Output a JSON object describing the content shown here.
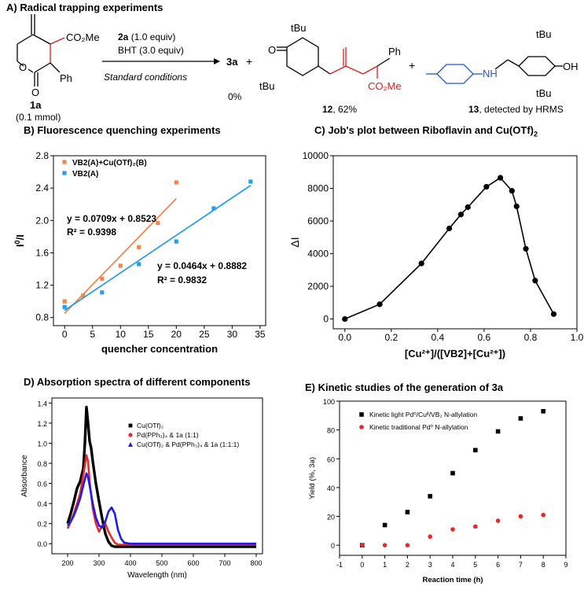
{
  "panel_titles": {
    "a": "A) Radical trapping experiments",
    "b": "B) Fluorescence quenching experiments",
    "c_main": "C) Job's plot between Riboflavin and Cu(OTf)",
    "c_sub": "2",
    "d": "D) Absorption spectra of different components",
    "e": "E) Kinetic studies of the generation of 3a"
  },
  "scheme": {
    "reactant_label": "1a",
    "reactant_amount": "(0.1 mmol)",
    "reagent1_bold": "2a",
    "reagent1_rest": " (1.0 equiv)",
    "reagent2": "BHT (3.0 equiv)",
    "conditions": "Standard conditions",
    "product_3a": "3a",
    "plus": "+",
    "yield_3a": "0%",
    "product12_label": "12",
    "product12_yield": ", 62%",
    "product13_label": "13",
    "product13_note": ", detected by HRMS",
    "atoms": {
      "co2me": "CO₂Me",
      "ph": "Ph",
      "tbu": "tBu",
      "oh": "OH",
      "nh": "NH",
      "o": "O"
    }
  },
  "colors": {
    "orange": "#f0874f",
    "blue": "#2a9fe6",
    "black": "#000000",
    "red": "#e8282b",
    "navy": "#1d1df0",
    "scheme_red": "#e21b1b",
    "scheme_blue": "#1f5bd1"
  },
  "chart_data": [
    {
      "id": "B",
      "type": "scatter",
      "xlabel": "quencher concentration",
      "ylabel_main": "I",
      "ylabel_sup": "0",
      "ylabel_tail": "/I",
      "xlim": [
        -2,
        36
      ],
      "ylim": [
        0.7,
        2.8
      ],
      "xticks": [
        0,
        5,
        10,
        15,
        20,
        25,
        30,
        35
      ],
      "yticks": [
        0.8,
        1.2,
        1.6,
        2.0,
        2.4,
        2.8
      ],
      "ytick_labels": [
        "0.8",
        "1.2",
        "1.6",
        "2.0",
        "2.4",
        "2.8"
      ],
      "legend_position": "top-left",
      "series": [
        {
          "name": "VB2(A)+Cu(OTf)₂(B)",
          "color": "#f0874f",
          "x": [
            0,
            3.3,
            6.7,
            10,
            13.3,
            16.7,
            20
          ],
          "y": [
            1.0,
            1.07,
            1.28,
            1.44,
            1.67,
            1.97,
            2.47
          ],
          "fit": {
            "slope": 0.0709,
            "intercept": 0.8523,
            "x_range": [
              0,
              20
            ]
          }
        },
        {
          "name": "VB2(A)",
          "color": "#2a9fe6",
          "x": [
            0,
            6.7,
            13.3,
            20,
            26.7,
            33.3
          ],
          "y": [
            0.93,
            1.11,
            1.46,
            1.74,
            2.15,
            2.48
          ],
          "fit": {
            "slope": 0.0464,
            "intercept": 0.8882,
            "x_range": [
              0,
              33.3
            ]
          }
        }
      ],
      "annotations": [
        "y = 0.0709x + 0.8523",
        "R² = 0.9398",
        "y = 0.0464x + 0.8882",
        "R² = 0.9832"
      ]
    },
    {
      "id": "C",
      "type": "line",
      "xlabel": "[Cu²⁺]/([VB2]+[Cu²⁺])",
      "ylabel": "ΔI",
      "xlim": [
        -0.05,
        1.0
      ],
      "ylim": [
        -600,
        10000
      ],
      "xticks": [
        0.0,
        0.2,
        0.4,
        0.6,
        0.8,
        1.0
      ],
      "xtick_labels": [
        "0.0",
        "0.2",
        "0.4",
        "0.6",
        "0.8",
        "1.0"
      ],
      "yticks": [
        0,
        2000,
        4000,
        6000,
        8000,
        10000
      ],
      "x": [
        0.0,
        0.15,
        0.33,
        0.45,
        0.5,
        0.53,
        0.61,
        0.67,
        0.72,
        0.74,
        0.78,
        0.82,
        0.9
      ],
      "y": [
        0,
        900,
        3400,
        5550,
        6400,
        6850,
        8100,
        8650,
        7850,
        6900,
        4300,
        2350,
        300
      ]
    },
    {
      "id": "D",
      "type": "line",
      "xlabel": "Wavelength (nm)",
      "ylabel": "Absorbance",
      "xlim": [
        150,
        820
      ],
      "ylim": [
        -0.1,
        1.45
      ],
      "xticks": [
        200,
        300,
        400,
        500,
        600,
        700,
        800
      ],
      "yticks": [
        0.0,
        0.2,
        0.4,
        0.6,
        0.8,
        1.0,
        1.2,
        1.4
      ],
      "ytick_labels": [
        "0.0",
        "0.2",
        "0.4",
        "0.6",
        "0.8",
        "1.0",
        "1.2",
        "1.4"
      ],
      "legend_position": "top-right",
      "series": [
        {
          "name": "Cu(OTf)₂",
          "color": "#000000",
          "x": [
            200,
            210,
            220,
            230,
            240,
            250,
            255,
            260,
            265,
            270,
            275,
            280,
            290,
            300,
            310,
            320,
            330,
            340,
            350,
            360,
            380,
            400,
            500,
            600,
            700,
            800
          ],
          "y": [
            0.2,
            0.3,
            0.42,
            0.55,
            0.62,
            0.75,
            1.0,
            1.36,
            1.2,
            1.02,
            0.95,
            0.82,
            0.6,
            0.42,
            0.25,
            0.1,
            0.02,
            -0.02,
            -0.03,
            -0.03,
            -0.03,
            -0.03,
            -0.03,
            -0.03,
            -0.03,
            -0.03
          ]
        },
        {
          "name": "Pd(PPh₃)₄ & 1a (1:1)",
          "color": "#e8282b",
          "x": [
            200,
            210,
            220,
            230,
            240,
            250,
            260,
            265,
            270,
            280,
            290,
            300,
            310,
            320,
            330,
            340,
            350,
            360,
            380,
            400,
            500,
            600,
            700,
            800
          ],
          "y": [
            0.15,
            0.22,
            0.3,
            0.4,
            0.5,
            0.68,
            0.88,
            0.82,
            0.62,
            0.35,
            0.2,
            0.12,
            0.18,
            0.2,
            0.12,
            0.06,
            0.01,
            -0.01,
            -0.01,
            -0.01,
            -0.01,
            -0.01,
            -0.01,
            -0.01
          ]
        },
        {
          "name": "Cu(OTf)₂ & Pd(PPh₃)₄ & 1a (1:1:1)",
          "color": "#1d1df0",
          "x": [
            200,
            210,
            220,
            230,
            240,
            250,
            260,
            265,
            270,
            280,
            290,
            300,
            310,
            320,
            330,
            340,
            350,
            360,
            370,
            380,
            400,
            500,
            600,
            700,
            800
          ],
          "y": [
            0.18,
            0.22,
            0.28,
            0.36,
            0.45,
            0.58,
            0.7,
            0.66,
            0.58,
            0.4,
            0.26,
            0.18,
            0.16,
            0.22,
            0.32,
            0.36,
            0.3,
            0.14,
            0.05,
            0.01,
            0.0,
            0.0,
            0.0,
            0.0,
            0.0
          ]
        }
      ]
    },
    {
      "id": "E",
      "type": "scatter",
      "xlabel": "Reaction time (h)",
      "ylabel": "Yield (%, 3a)",
      "xlim": [
        -1,
        9
      ],
      "ylim": [
        -7,
        100
      ],
      "xticks": [
        -1,
        0,
        1,
        2,
        3,
        4,
        5,
        6,
        7,
        8,
        9
      ],
      "yticks": [
        0,
        20,
        40,
        60,
        80,
        100
      ],
      "legend_position": "top-left",
      "series": [
        {
          "name": "Kinetic light Pd⁰/Cuᴵᴵ/VB₂ N-allylation",
          "color": "#000000",
          "x": [
            0,
            1,
            2,
            3,
            4,
            5,
            6,
            7,
            8
          ],
          "y": [
            0,
            14,
            23,
            34,
            50,
            66,
            79,
            88,
            93
          ]
        },
        {
          "name": "Kinetic traditional Pd⁰ N-allylation",
          "color": "#e8282b",
          "x": [
            0,
            1,
            2,
            3,
            4,
            5,
            6,
            7,
            8
          ],
          "y": [
            0,
            0,
            0,
            6,
            11,
            13,
            17,
            20,
            21
          ]
        }
      ]
    }
  ]
}
